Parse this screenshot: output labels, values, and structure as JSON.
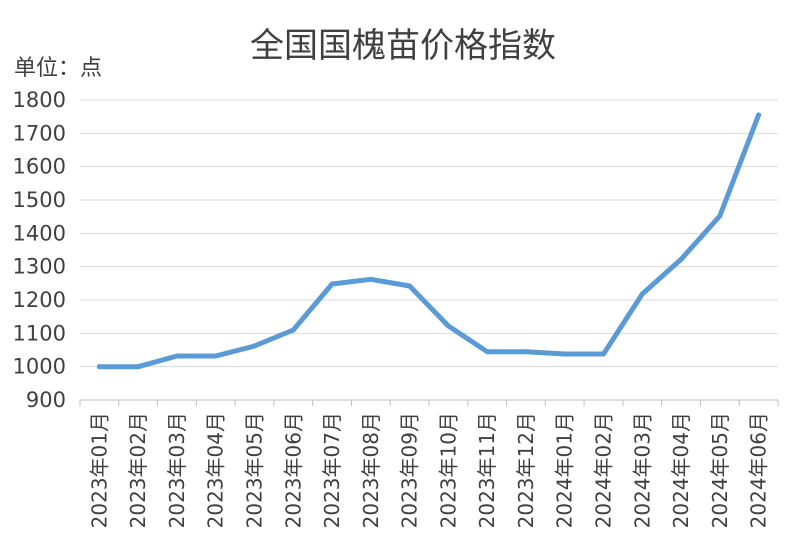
{
  "chart_data": {
    "type": "line",
    "title": "全国国槐苗价格指数",
    "unit_label": "单位：点",
    "xlabel": "",
    "ylabel": "",
    "ylim": [
      900,
      1800
    ],
    "yticks": [
      900,
      1000,
      1100,
      1200,
      1300,
      1400,
      1500,
      1600,
      1700,
      1800
    ],
    "grid": true,
    "categories": [
      "2023年01月",
      "2023年02月",
      "2023年03月",
      "2023年04月",
      "2023年05月",
      "2023年06月",
      "2023年07月",
      "2023年08月",
      "2023年09月",
      "2023年10月",
      "2023年11月",
      "2023年12月",
      "2024年01月",
      "2024年02月",
      "2024年03月",
      "2024年04月",
      "2024年05月",
      "2024年06月"
    ],
    "series": [
      {
        "values": [
          1000,
          1000,
          1032,
          1032,
          1062,
          1110,
          1248,
          1262,
          1242,
          1122,
          1045,
          1045,
          1038,
          1038,
          1218,
          1322,
          1452,
          1755
        ]
      }
    ],
    "colors": {
      "line": "#5b9bd5",
      "grid": "#d9d9d9",
      "axis": "#bfbfbf"
    }
  }
}
